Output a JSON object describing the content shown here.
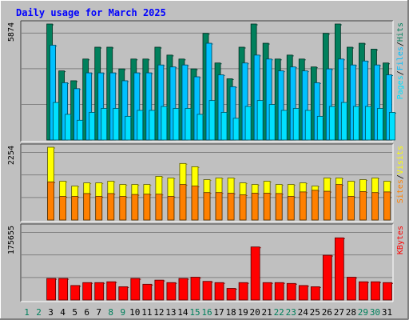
{
  "title": "Daily usage for March 2025",
  "colors": {
    "background": "#c0c0c0",
    "panel": "#c0c0c0",
    "grid": "#808080",
    "title": "#0000ff",
    "hits": "#00805c",
    "files": "#00c0ff",
    "pages": "#00e0ff",
    "visits": "#ffff00",
    "sites": "#ff8000",
    "kbytes": "#ff0000",
    "weekday_label": "#000000",
    "weekend_label": "#00805c"
  },
  "panels": {
    "top": {
      "y_max_label": "5874",
      "legend": [
        {
          "text": "Pages",
          "color_key": "pages"
        },
        {
          "text": "/",
          "color_key": "sep"
        },
        {
          "text": "Files",
          "color_key": "files"
        },
        {
          "text": "/",
          "color_key": "sep"
        },
        {
          "text": "Hits",
          "color_key": "hits"
        }
      ]
    },
    "middle": {
      "y_max_label": "2254",
      "legend": [
        {
          "text": "Sites",
          "color_key": "sites"
        },
        {
          "text": "/",
          "color_key": "sep"
        },
        {
          "text": "Visits",
          "color_key": "visits"
        }
      ]
    },
    "bottom": {
      "y_max_label": "175655",
      "legend": [
        {
          "text": "KBytes",
          "color_key": "kbytes"
        }
      ]
    }
  },
  "chart_data": {
    "type": "bar",
    "title": "Daily usage for March 2025",
    "categories": [
      "1",
      "2",
      "3",
      "4",
      "5",
      "6",
      "7",
      "8",
      "9",
      "10",
      "11",
      "12",
      "13",
      "14",
      "15",
      "16",
      "17",
      "18",
      "19",
      "20",
      "21",
      "22",
      "23",
      "24",
      "25",
      "26",
      "27",
      "28",
      "29",
      "30",
      "31"
    ],
    "weekend_days": [
      "1",
      "2",
      "8",
      "9",
      "15",
      "16",
      "22",
      "23",
      "29",
      "30"
    ],
    "panels": [
      {
        "name": "hits-files-pages",
        "ylim": [
          0,
          5874
        ],
        "series": [
          {
            "name": "Hits",
            "values": [
              null,
              null,
              5874,
              3500,
              3000,
              4100,
              4700,
              4700,
              3600,
              4100,
              4100,
              4700,
              4300,
              4100,
              3600,
              5400,
              3900,
              3100,
              4700,
              5874,
              4900,
              4100,
              4300,
              4100,
              3700,
              5400,
              5874,
              4700,
              4900,
              4600,
              3900
            ]
          },
          {
            "name": "Files",
            "values": [
              null,
              null,
              4800,
              2900,
              2600,
              3400,
              3400,
              3400,
              3000,
              3400,
              3400,
              3800,
              3700,
              3800,
              3200,
              4900,
              3300,
              2700,
              3900,
              4300,
              4100,
              3500,
              3700,
              3500,
              2900,
              3600,
              4100,
              3800,
              4000,
              3800,
              3300
            ]
          },
          {
            "name": "Pages",
            "values": [
              null,
              null,
              1900,
              1300,
              1000,
              1400,
              1600,
              1600,
              1200,
              1500,
              1500,
              1700,
              1600,
              1600,
              1300,
              2000,
              1400,
              1100,
              1700,
              2000,
              1800,
              1500,
              1600,
              1500,
              1200,
              1700,
              1900,
              1700,
              1700,
              1600,
              1400
            ]
          }
        ]
      },
      {
        "name": "visits-sites",
        "ylim": [
          0,
          2254
        ],
        "series": [
          {
            "name": "Visits",
            "values": [
              null,
              null,
              2254,
              1200,
              1050,
              1150,
              1150,
              1200,
              1100,
              1100,
              1100,
              1350,
              1300,
              1750,
              1650,
              1250,
              1300,
              1300,
              1150,
              1100,
              1200,
              1100,
              1100,
              1150,
              1050,
              1300,
              1300,
              1200,
              1250,
              1300,
              1200
            ]
          },
          {
            "name": "Sites",
            "values": [
              null,
              null,
              1180,
              730,
              730,
              820,
              730,
              820,
              730,
              790,
              800,
              800,
              730,
              1100,
              1050,
              850,
              850,
              830,
              780,
              830,
              830,
              820,
              730,
              870,
              920,
              890,
              1100,
              730,
              880,
              850,
              870
            ]
          }
        ]
      },
      {
        "name": "kbytes",
        "ylim": [
          0,
          175655
        ],
        "series": [
          {
            "name": "KBytes",
            "values": [
              null,
              null,
              52000,
              52000,
              35000,
              42000,
              42000,
              44000,
              32000,
              52000,
              38000,
              48000,
              42000,
              52000,
              55000,
              45000,
              42000,
              28000,
              42000,
              128000,
              42000,
              42000,
              40000,
              35000,
              32000,
              108000,
              150000,
              55000,
              44000,
              44000,
              42000
            ]
          }
        ]
      }
    ]
  }
}
